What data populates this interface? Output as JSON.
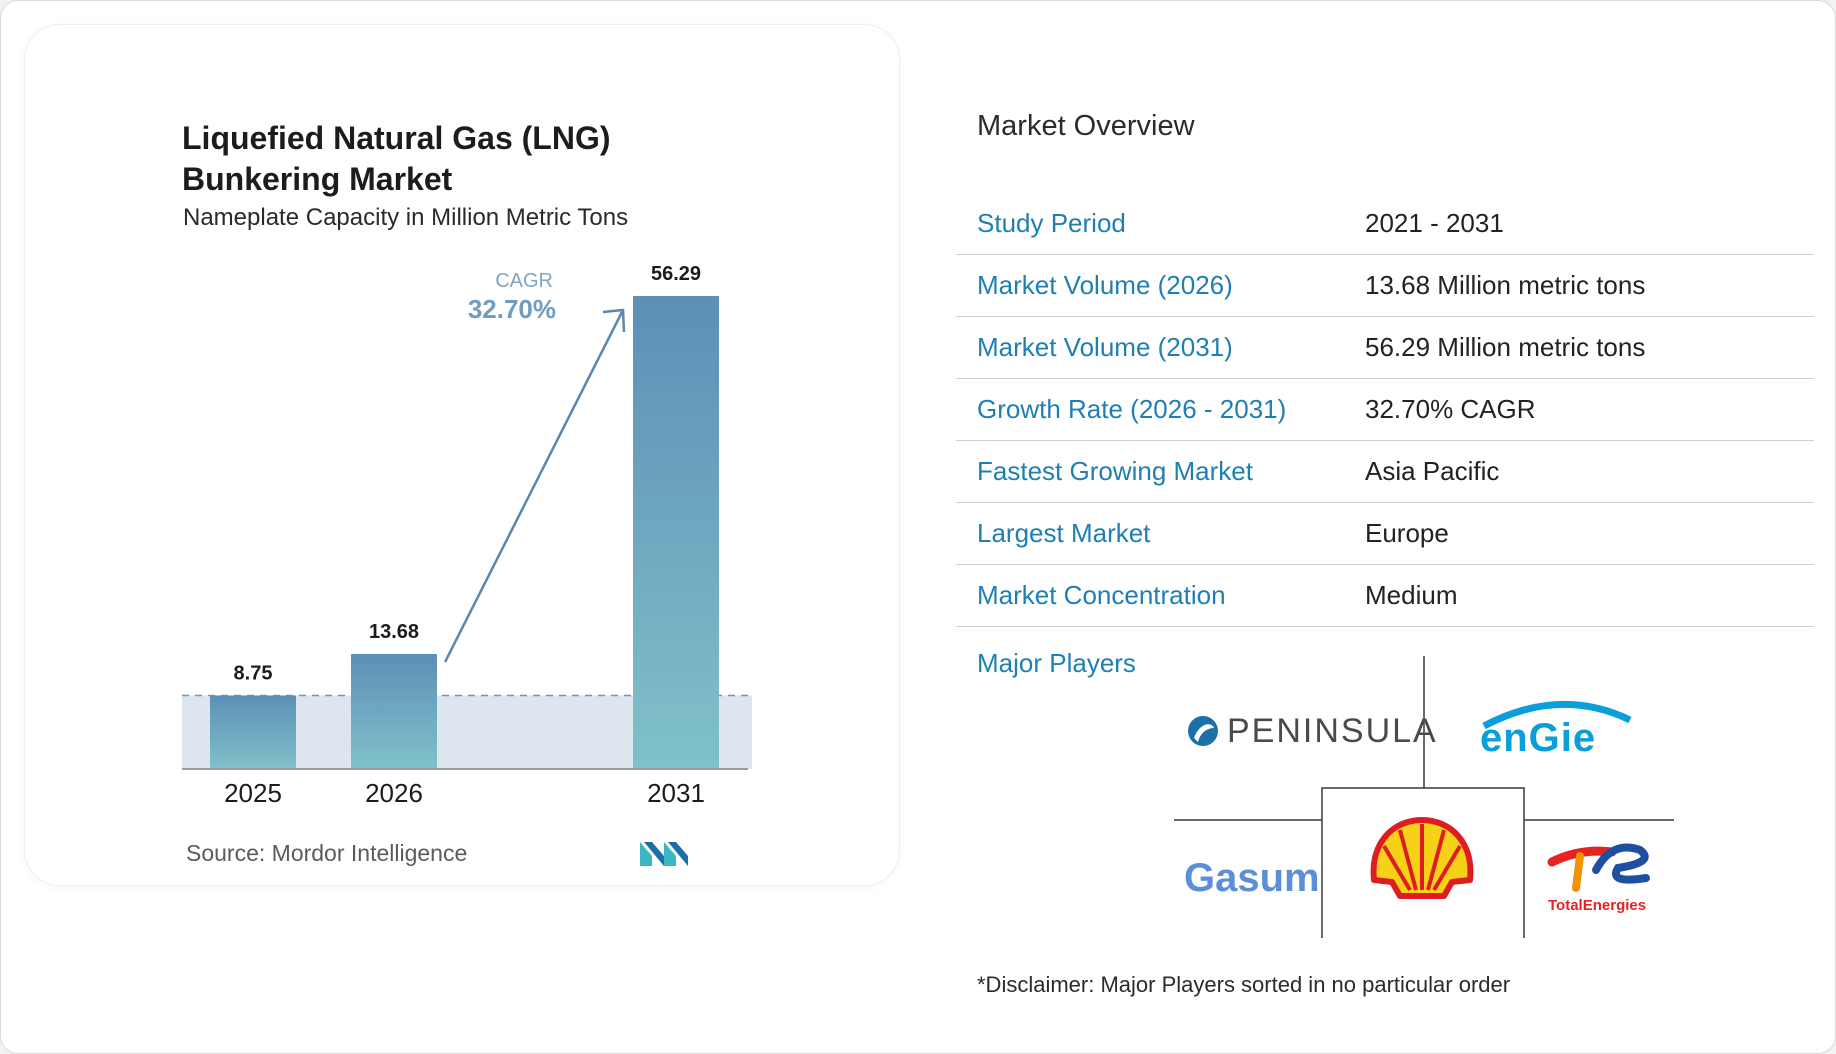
{
  "chart_data": {
    "type": "bar",
    "title": "Liquefied Natural Gas (LNG) Bunkering Market",
    "subtitle": "Nameplate Capacity in Million Metric Tons",
    "categories": [
      "2025",
      "2026",
      "2031"
    ],
    "values": [
      8.75,
      13.68,
      56.29
    ],
    "value_labels": [
      "8.75",
      "13.68",
      "56.29"
    ],
    "ylim": [
      0,
      56.29
    ],
    "reference_line_value": 8.75,
    "annotation": {
      "label": "CAGR",
      "value": "32.70%"
    },
    "grid": false,
    "colors": {
      "bar_top": "#5d8fb7",
      "bar_bottom": "#7dbfc8",
      "band": "#dde6ef",
      "arrow": "#5a87ad",
      "dash": "#6b97bd"
    }
  },
  "footer": {
    "source": "Source: Mordor Intelligence"
  },
  "overview": {
    "title": "Market Overview",
    "rows": [
      {
        "label": "Study Period",
        "value": "2021 - 2031"
      },
      {
        "label": "Market Volume (2026)",
        "value": "13.68 Million metric tons"
      },
      {
        "label": "Market Volume (2031)",
        "value": "56.29 Million metric tons"
      },
      {
        "label": "Growth Rate (2026 - 2031)",
        "value": "32.70% CAGR"
      },
      {
        "label": "Fastest Growing Market",
        "value": "Asia Pacific"
      },
      {
        "label": "Largest Market",
        "value": "Europe"
      },
      {
        "label": "Market Concentration",
        "value": "Medium"
      }
    ],
    "major_players_label": "Major Players",
    "players": [
      "PENINSULA",
      "engie",
      "Gasum",
      "Shell",
      "TotalEnergies"
    ],
    "disclaimer": "*Disclaimer: Major Players sorted in no particular order"
  },
  "logos": {
    "peninsula": "PENINSULA",
    "engie": "enGie",
    "gasum": "Gasum",
    "total": "TotalEnergies"
  }
}
